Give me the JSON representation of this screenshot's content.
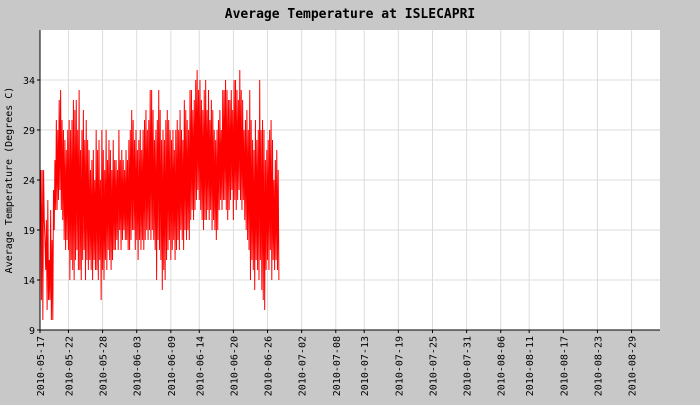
{
  "chart_data": {
    "type": "line",
    "title": "Average Temperature at ISLECAPRI",
    "xlabel": "",
    "ylabel": "Average Temperature (Degrees C)",
    "x_start": "2010-05-17",
    "x_end": "2010-09-03",
    "ylim": [
      9,
      39
    ],
    "y_ticks": [
      9,
      14,
      19,
      24,
      29,
      34
    ],
    "x_ticks": [
      "2010-05-17",
      "2010-05-22",
      "2010-05-28",
      "2010-06-03",
      "2010-06-09",
      "2010-06-14",
      "2010-06-20",
      "2010-06-26",
      "2010-07-02",
      "2010-07-08",
      "2010-07-13",
      "2010-07-19",
      "2010-07-25",
      "2010-07-31",
      "2010-08-06",
      "2010-08-11",
      "2010-08-17",
      "2010-08-23",
      "2010-08-29"
    ],
    "grid": true,
    "legend": "none",
    "line_color": "#ff0000",
    "series": [
      {
        "interval_hours": 3,
        "values": [
          22,
          25,
          12,
          25,
          10,
          25,
          20,
          18,
          15,
          20,
          11,
          22,
          12,
          16,
          12,
          21,
          10,
          18,
          10,
          23,
          19,
          26,
          21,
          30,
          21,
          29,
          22,
          32,
          23,
          33,
          21,
          30,
          20,
          29,
          18,
          28,
          17,
          27,
          18,
          29,
          17,
          30,
          14,
          29,
          16,
          30,
          15,
          32,
          14,
          31,
          16,
          32,
          17,
          29,
          15,
          33,
          15,
          27,
          14,
          29,
          16,
          31,
          17,
          28,
          14,
          30,
          16,
          28,
          15,
          27,
          16,
          25,
          15,
          26,
          14,
          27,
          16,
          24,
          15,
          29,
          15,
          27,
          14,
          28,
          16,
          24,
          12,
          29,
          15,
          27,
          14,
          25,
          16,
          29,
          15,
          26,
          17,
          28,
          16,
          27,
          15,
          25,
          16,
          28,
          17,
          26,
          17,
          26,
          18,
          25,
          17,
          29,
          19,
          26,
          17,
          27,
          18,
          26,
          19,
          25,
          18,
          27,
          18,
          26,
          17,
          28,
          17,
          29,
          18,
          31,
          19,
          30,
          19,
          28,
          17,
          29,
          18,
          27,
          16,
          28,
          18,
          29,
          17,
          27,
          18,
          29,
          17,
          30,
          18,
          31,
          19,
          29,
          18,
          30,
          19,
          33,
          18,
          33,
          19,
          31,
          18,
          28,
          17,
          29,
          14,
          30,
          18,
          33,
          17,
          31,
          16,
          28,
          13,
          29,
          15,
          28,
          14,
          30,
          16,
          31,
          17,
          30,
          18,
          29,
          16,
          28,
          17,
          29,
          18,
          27,
          16,
          29,
          17,
          30,
          18,
          29,
          17,
          31,
          19,
          29,
          18,
          28,
          17,
          32,
          19,
          31,
          18,
          30,
          19,
          29,
          18,
          33,
          20,
          33,
          21,
          31,
          20,
          32,
          21,
          34,
          22,
          35,
          23,
          33,
          22,
          34,
          21,
          32,
          20,
          31,
          19,
          33,
          20,
          34,
          20,
          31,
          21,
          33,
          20,
          30,
          21,
          32,
          19,
          31,
          20,
          29,
          19,
          28,
          18,
          29,
          19,
          30,
          21,
          31,
          22,
          29,
          21,
          33,
          22,
          33,
          22,
          34,
          21,
          33,
          20,
          32,
          21,
          32,
          22,
          33,
          23,
          31,
          20,
          34,
          22,
          34,
          21,
          33,
          22,
          32,
          23,
          35,
          22,
          33,
          21,
          32,
          22,
          29,
          20,
          30,
          19,
          31,
          18,
          29,
          17,
          33,
          14,
          30,
          16,
          28,
          15,
          27,
          13,
          30,
          16,
          28,
          15,
          29,
          14,
          34,
          16,
          29,
          13,
          30,
          12,
          29,
          11,
          26,
          15,
          27,
          16,
          28,
          15,
          29,
          17,
          30,
          14,
          28,
          16,
          24,
          15,
          26,
          16,
          27,
          15,
          25,
          14
        ]
      }
    ]
  }
}
